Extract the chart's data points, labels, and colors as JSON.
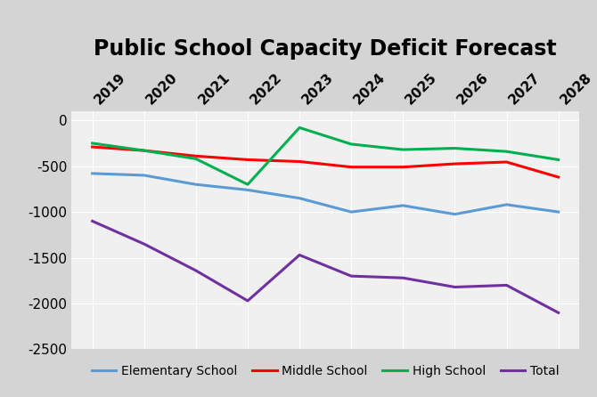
{
  "title": "Public School Capacity Deficit Forecast",
  "years": [
    2019,
    2020,
    2021,
    2022,
    2023,
    2024,
    2025,
    2026,
    2027,
    2028
  ],
  "elementary": [
    -580,
    -600,
    -700,
    -760,
    -850,
    -1000,
    -930,
    -1025,
    -920,
    -1000
  ],
  "middle": [
    -290,
    -330,
    -390,
    -430,
    -450,
    -510,
    -510,
    -475,
    -455,
    -620
  ],
  "high": [
    -250,
    -330,
    -420,
    -700,
    -80,
    -260,
    -320,
    -305,
    -340,
    -430
  ],
  "total": [
    -1100,
    -1350,
    -1640,
    -1970,
    -1470,
    -1700,
    -1720,
    -1820,
    -1800,
    -2100
  ],
  "line_colors": {
    "elementary": "#5B9BD5",
    "middle": "#FF0000",
    "high": "#00B050",
    "total": "#7030A0"
  },
  "legend_labels": [
    "Elementary School",
    "Middle School",
    "High School",
    "Total"
  ],
  "ylim": [
    -2500,
    100
  ],
  "yticks": [
    0,
    -500,
    -1000,
    -1500,
    -2000,
    -2500
  ],
  "ytick_labels": [
    "0",
    "-500",
    "-1000",
    "-1500",
    "-2000",
    "-2500"
  ],
  "outer_bg_color": "#D4D4D4",
  "plot_bg_color": "#F0F0F0",
  "grid_color": "#FFFFFF",
  "title_fontsize": 17,
  "axis_fontsize": 11,
  "legend_fontsize": 10,
  "linewidth": 2.2
}
